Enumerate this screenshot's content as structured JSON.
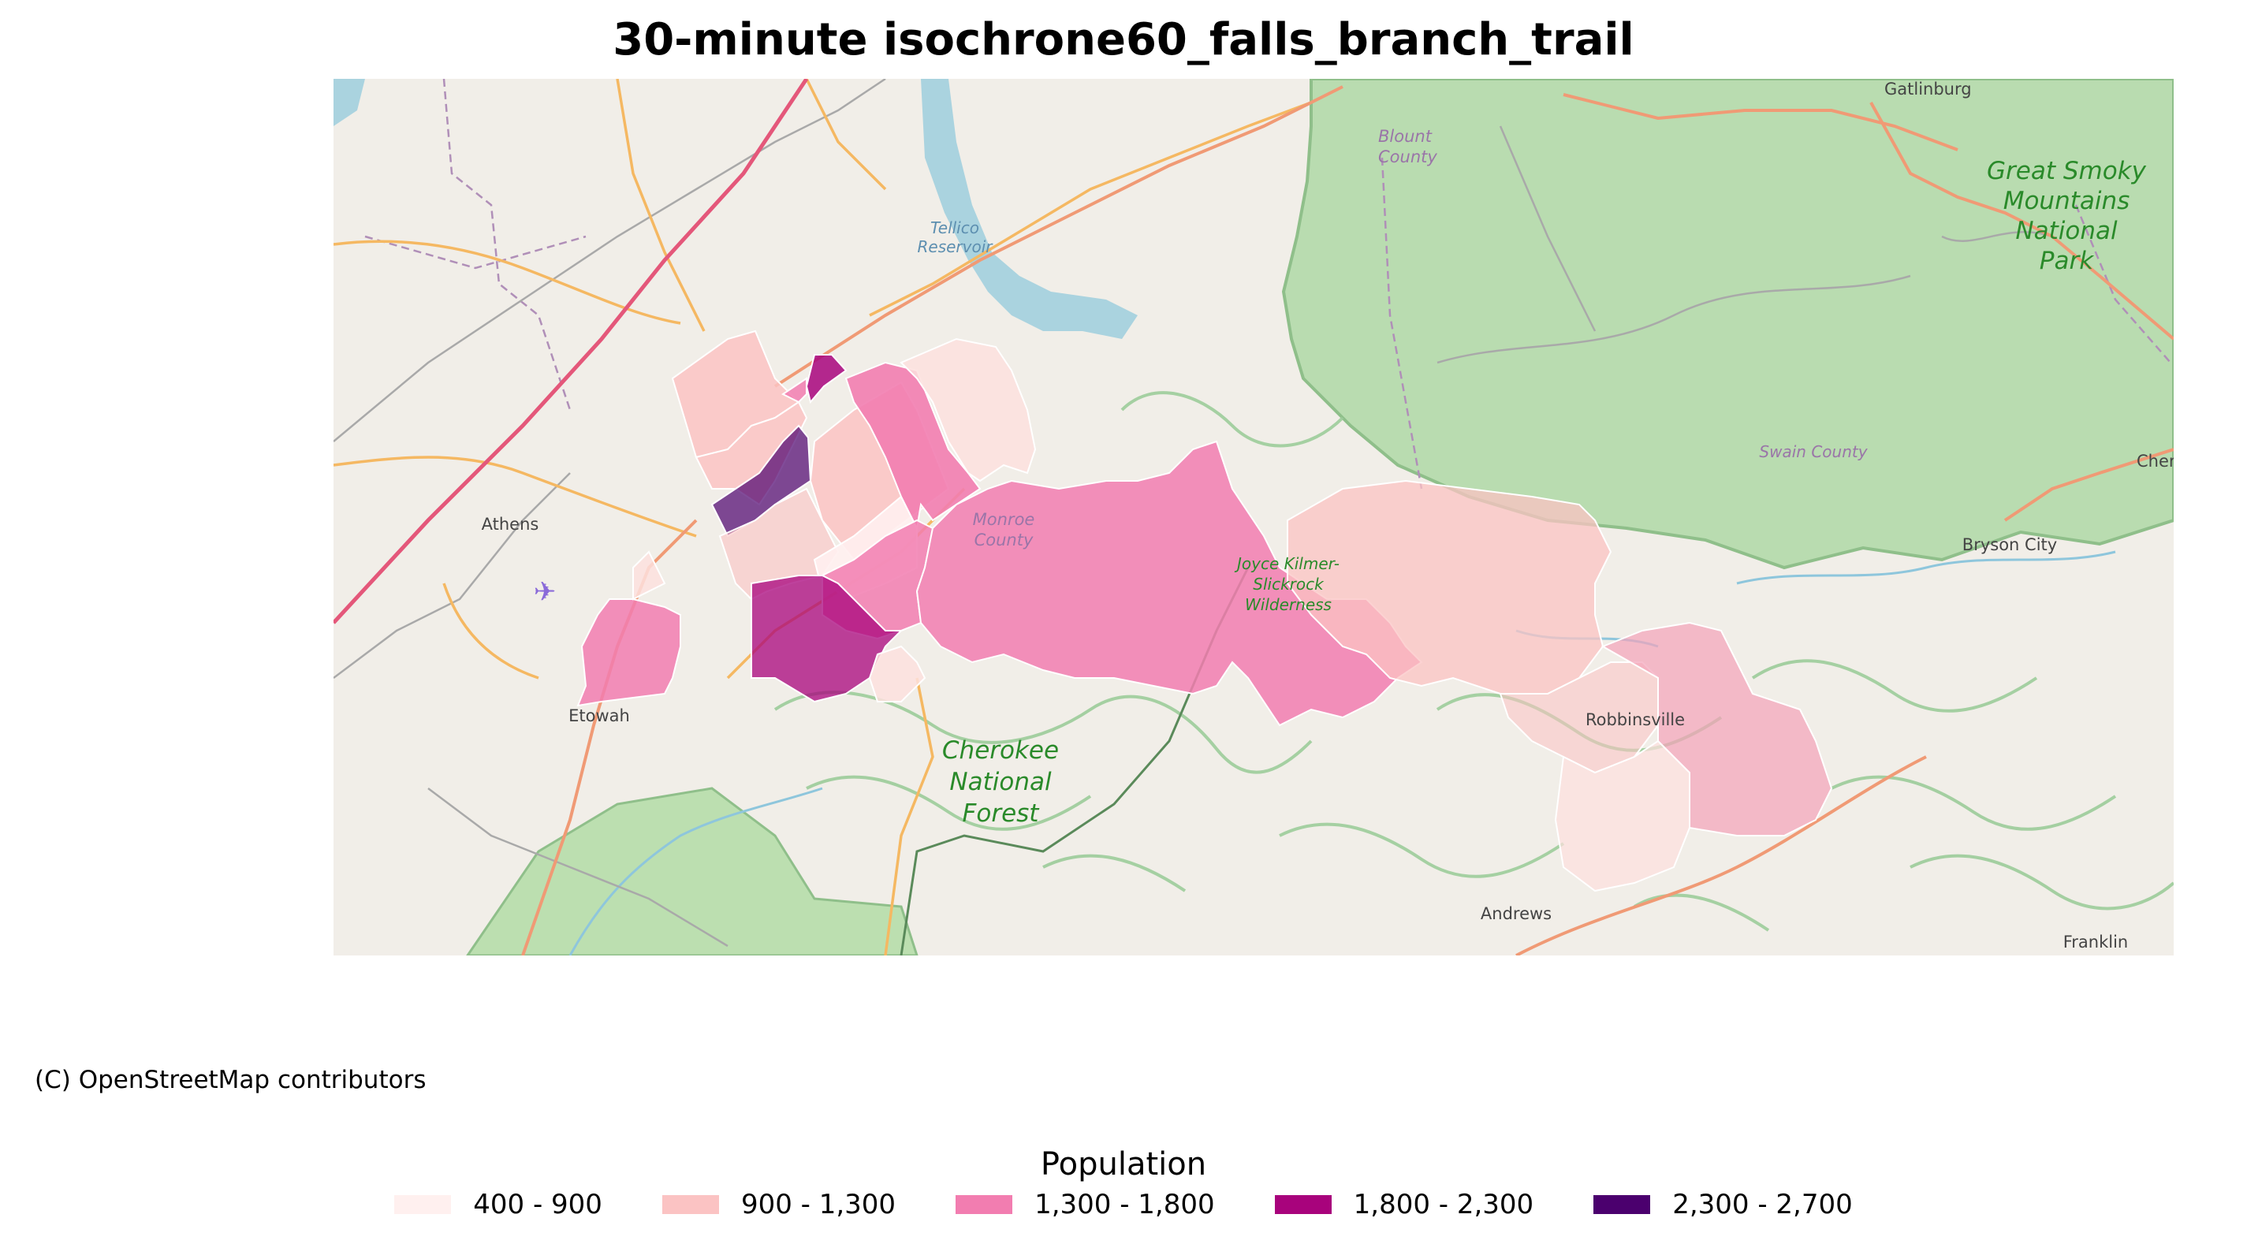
{
  "title": "30-minute isochrone60_falls_branch_trail",
  "attribution": "(C) OpenStreetMap contributors",
  "legend": {
    "title": "Population",
    "items": [
      {
        "label": "400 - 900",
        "color": "#fff0ef"
      },
      {
        "label": "900 - 1,300",
        "color": "#fbc3c3"
      },
      {
        "label": "1,300 - 1,800",
        "color": "#f27db0"
      },
      {
        "label": "1,800 - 2,300",
        "color": "#a8037c"
      },
      {
        "label": "2,300 - 2,700",
        "color": "#4b006e"
      }
    ]
  },
  "basemap_labels": {
    "gatlinburg": "Gatlinburg",
    "blount": "Blount",
    "blount2": "County",
    "tellico": "Tellico",
    "tellico2": "Reservoir",
    "gsmnp1": "Great Smoky",
    "gsmnp2": "Mountains",
    "gsmnp3": "National",
    "gsmnp4": "Park",
    "swain": "Swain County",
    "cher": "Cher",
    "athens": "Athens",
    "monroe1": "Monroe",
    "monroe2": "County",
    "jk1": "Joyce Kilmer-",
    "jk2": "Slickrock",
    "jk3": "Wilderness",
    "bryson": "Bryson City",
    "etowah": "Etowah",
    "robbinsville": "Robbinsville",
    "cnf1": "Cherokee",
    "cnf2": "National",
    "cnf3": "Forest",
    "andrews": "Andrews",
    "franklin": "Franklin"
  }
}
